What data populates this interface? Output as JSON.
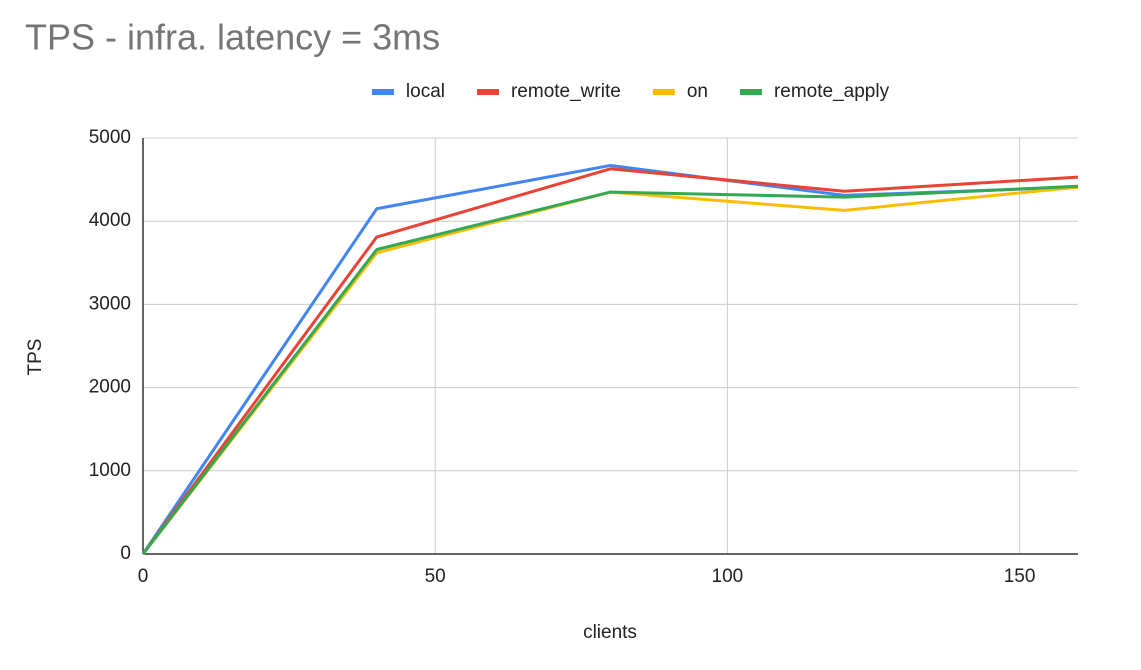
{
  "chart_data": {
    "type": "line",
    "title": "TPS - infra. latency = 3ms",
    "x_label": "clients",
    "y_label": "TPS",
    "x": [
      0,
      40,
      80,
      120,
      160
    ],
    "series": [
      {
        "name": "local",
        "color": "#4285f4",
        "values": [
          0,
          4150,
          4670,
          4310,
          4410
        ]
      },
      {
        "name": "remote_write",
        "color": "#ea4335",
        "values": [
          0,
          3810,
          4630,
          4360,
          4530
        ]
      },
      {
        "name": "on",
        "color": "#fbbc04",
        "values": [
          0,
          3620,
          4350,
          4130,
          4410
        ]
      },
      {
        "name": "remote_apply",
        "color": "#34a853",
        "values": [
          0,
          3660,
          4350,
          4290,
          4420
        ]
      }
    ],
    "xlim": [
      0,
      160
    ],
    "xticks": [
      0,
      50,
      100,
      150
    ],
    "ylim": [
      0,
      5000
    ],
    "yticks": [
      0,
      1000,
      2000,
      3000,
      4000,
      5000
    ],
    "grid": true,
    "legend": "top"
  }
}
